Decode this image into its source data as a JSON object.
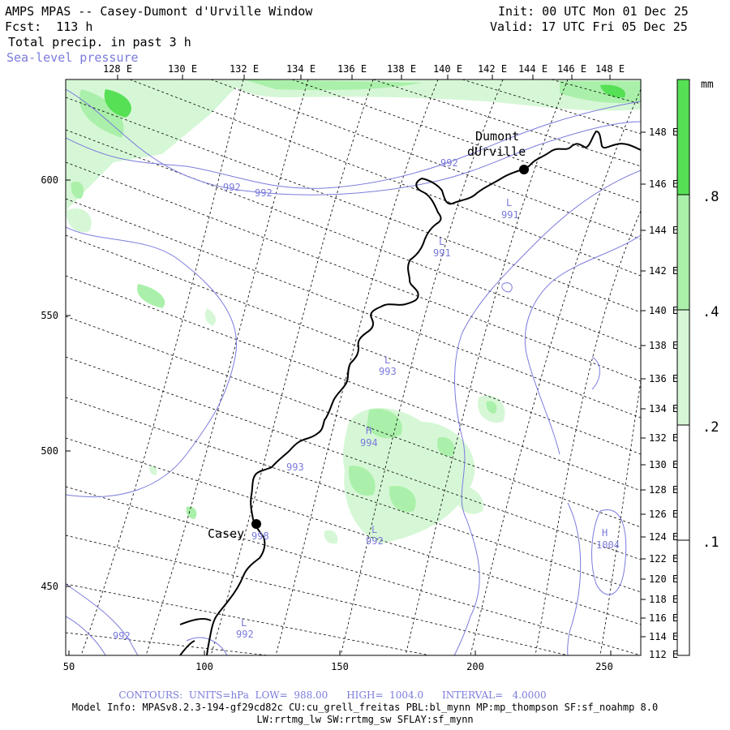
{
  "header": {
    "title": "AMPS MPAS -- Casey-Dumont d'Urville Window",
    "forecast": "Fcst:  113 h",
    "field": "Total precip. in past 3 h",
    "overlay": "Sea-level pressure",
    "init": "Init: 00 UTC Mon 01 Dec 25",
    "valid": "Valid: 17 UTC Fri 05 Dec 25"
  },
  "top_axis_labels": [
    "128 E",
    "130 E",
    "132 E",
    "134 E",
    "136 E",
    "138 E",
    "140 E",
    "142 E",
    "144 E",
    "146 E",
    "148 E"
  ],
  "right_axis_labels": [
    "148 E",
    "146 E",
    "144 E",
    "142 E",
    "140 E",
    "138 E",
    "136 E",
    "134 E",
    "132 E",
    "130 E",
    "128 E",
    "126 E",
    "124 E",
    "122 E",
    "120 E",
    "118 E",
    "116 E",
    "114 E",
    "112 E"
  ],
  "x_axis_labels": [
    "50",
    "100",
    "150",
    "200",
    "250"
  ],
  "y_axis_labels": [
    "600",
    "550",
    "500",
    "450"
  ],
  "colorbar": {
    "unit": "mm",
    "labels": [
      ".8",
      ".4",
      ".2",
      ".1"
    ],
    "colors": [
      "#55e055",
      "#aaf0aa",
      "#d6f7d6",
      "#ffffff"
    ]
  },
  "stations": [
    {
      "name": "Dumont dUrville",
      "line1": "Dumont",
      "line2": "dUrville"
    },
    {
      "name": "Casey",
      "line1": "Casey",
      "line2": ""
    }
  ],
  "pressure_labels": [
    "992",
    "992",
    "992",
    "991",
    "991",
    "993",
    "994",
    "993",
    "992",
    "1004",
    "992",
    "992",
    "998"
  ],
  "pressure_centers": [
    "L",
    "L",
    "L",
    "H",
    "L",
    "H",
    "L"
  ],
  "footer": {
    "contours": "CONTOURS:  UNITS=hPa  LOW=  988.00      HIGH=  1004.0      INTERVAL=   4.0000",
    "model_info": "Model Info: MPASv8.2.3-194-gf29cd82c CU:cu_grell_freitas PBL:bl_mynn MP:mp_thompson SF:sf_noahmp 8.0",
    "model_info2": "LW:rrtmg_lw SW:rrtmg_sw SFLAY:sf_mynn"
  },
  "colors": {
    "pressure_contour": "#7b7bdc",
    "coastline": "#000000",
    "precip_light": "#d6f7d6",
    "precip_mid": "#aaf0aa",
    "precip_heavy": "#55e055"
  }
}
